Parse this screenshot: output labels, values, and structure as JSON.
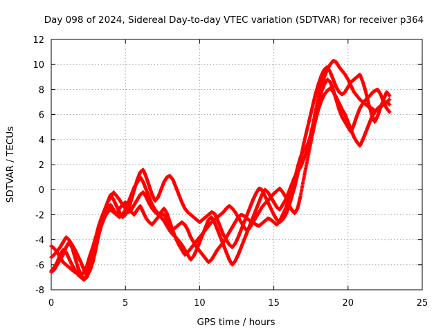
{
  "chart_data": {
    "type": "scatter",
    "title": "Day 098 of 2024, Sidereal Day-to-day VTEC variation (SDTVAR) for receiver p364",
    "xlabel": "GPS time / hours",
    "ylabel": "SDTVAR / TECUs",
    "xlim": [
      0,
      25
    ],
    "ylim": [
      -8,
      12
    ],
    "xticks": [
      0,
      5,
      10,
      15,
      20,
      25
    ],
    "yticks": [
      -8,
      -6,
      -4,
      -2,
      0,
      2,
      4,
      6,
      8,
      10,
      12
    ],
    "grid": true,
    "marker": "plus",
    "color": "#ff0000",
    "series": [
      {
        "x": [
          0.0,
          0.2,
          0.4,
          0.6,
          0.8,
          1.0,
          1.2,
          1.4,
          1.6,
          1.8,
          2.0,
          2.2,
          2.4,
          2.6,
          2.8,
          3.0,
          3.2,
          3.4,
          3.6,
          3.8,
          4.0,
          4.2,
          4.4,
          4.6,
          4.8,
          5.0,
          5.2,
          5.4,
          5.6,
          5.8,
          6.0,
          6.2,
          6.4,
          6.6,
          6.8,
          7.0,
          7.2,
          7.4,
          7.6,
          7.8,
          8.0,
          8.2,
          8.4,
          8.6,
          8.8,
          9.0,
          9.2,
          9.4,
          9.6,
          9.8,
          10.0,
          10.2,
          10.4,
          10.6,
          10.8,
          11.0,
          11.2,
          11.4,
          11.6,
          11.8,
          12.0,
          12.2,
          12.4,
          12.6,
          12.8,
          13.0,
          13.2,
          13.4,
          13.6,
          13.8,
          14.0,
          14.2,
          14.4,
          14.6,
          14.8,
          15.0,
          15.2,
          15.4,
          15.6,
          15.8,
          16.0,
          16.2,
          16.4,
          16.6,
          16.8,
          17.0,
          17.2,
          17.4,
          17.6,
          17.8,
          18.0,
          18.2,
          18.4,
          18.6,
          18.8,
          19.0,
          19.2,
          19.4,
          19.6,
          19.8,
          20.0,
          20.2,
          20.4,
          20.6,
          20.8,
          21.0,
          21.2,
          21.4,
          21.6,
          21.8,
          22.0,
          22.2,
          22.4,
          22.6,
          22.8
        ],
        "y": [
          -6.5,
          -6.2,
          -5.8,
          -5.2,
          -4.8,
          -5.0,
          -5.5,
          -6.0,
          -6.4,
          -6.8,
          -7.0,
          -7.2,
          -6.8,
          -6.0,
          -5.2,
          -4.2,
          -3.2,
          -2.5,
          -2.0,
          -1.6,
          -1.2,
          -1.6,
          -2.0,
          -1.5,
          -1.2,
          -1.0,
          -1.3,
          -1.8,
          -2.0,
          -1.6,
          -1.3,
          -1.8,
          -2.3,
          -2.6,
          -2.8,
          -2.5,
          -2.2,
          -1.9,
          -2.0,
          -2.4,
          -2.9,
          -3.2,
          -3.0,
          -2.8,
          -2.6,
          -2.8,
          -3.2,
          -3.8,
          -4.2,
          -4.6,
          -4.9,
          -5.2,
          -5.5,
          -5.8,
          -5.6,
          -5.2,
          -4.8,
          -4.5,
          -4.2,
          -3.8,
          -3.4,
          -3.0,
          -2.6,
          -2.2,
          -2.0,
          -2.1,
          -2.3,
          -2.5,
          -2.6,
          -2.8,
          -2.9,
          -2.7,
          -2.5,
          -2.3,
          -2.4,
          -2.6,
          -2.8,
          -2.5,
          -2.0,
          -1.5,
          -0.8,
          0.0,
          0.8,
          1.8,
          2.6,
          3.2,
          3.4,
          4.0,
          5.0,
          6.2,
          7.4,
          8.3,
          9.0,
          9.6,
          10.0,
          10.3,
          10.2,
          9.8,
          9.5,
          9.2,
          8.8,
          8.3,
          7.8,
          7.5,
          7.2,
          7.0,
          6.8,
          6.6,
          6.5,
          6.3,
          6.4,
          6.6,
          6.8,
          7.0,
          7.2
        ]
      },
      {
        "x": [
          0.0,
          0.2,
          0.4,
          0.6,
          0.8,
          1.0,
          1.2,
          1.4,
          1.6,
          1.8,
          2.0,
          2.2,
          2.4,
          2.6,
          2.8,
          3.0,
          3.2,
          3.4,
          3.6,
          3.8,
          4.0,
          4.2,
          4.4,
          4.6,
          4.8,
          5.0,
          5.2,
          5.4,
          5.6,
          5.8,
          6.0,
          6.2,
          6.4,
          6.6,
          6.8,
          7.0,
          7.2,
          7.4,
          7.6,
          7.8,
          8.0,
          8.2,
          8.4,
          8.6,
          8.8,
          9.0,
          9.2,
          9.4,
          9.6,
          9.8,
          10.0,
          10.2,
          10.4,
          10.6,
          10.8,
          11.0,
          11.2,
          11.4,
          11.6,
          11.8,
          12.0,
          12.2,
          12.4,
          12.6,
          12.8,
          13.0,
          13.2,
          13.4,
          13.6,
          13.8,
          14.0,
          14.2,
          14.4,
          14.6,
          14.8,
          15.0,
          15.2,
          15.4,
          15.6,
          15.8,
          16.0,
          16.2,
          16.4,
          16.6,
          16.8,
          17.0,
          17.2,
          17.4,
          17.6,
          17.8,
          18.0,
          18.2,
          18.4,
          18.6,
          18.8,
          19.0,
          19.2,
          19.4,
          19.6,
          19.8,
          20.0,
          20.2,
          20.4,
          20.6,
          20.8,
          21.0,
          21.2,
          21.4,
          21.6,
          21.8,
          22.0,
          22.2,
          22.4,
          22.6,
          22.8
        ],
        "y": [
          -4.5,
          -4.7,
          -5.0,
          -5.4,
          -5.8,
          -6.0,
          -6.2,
          -6.4,
          -6.6,
          -6.5,
          -6.9,
          -6.6,
          -6.1,
          -5.3,
          -4.6,
          -3.8,
          -2.9,
          -2.2,
          -1.6,
          -1.0,
          -0.6,
          -0.2,
          -0.5,
          -0.8,
          -1.2,
          -1.5,
          -1.8,
          -1.6,
          -1.2,
          -0.8,
          -0.4,
          -0.2,
          -0.6,
          -1.1,
          -1.5,
          -1.8,
          -2.0,
          -1.8,
          -1.5,
          -1.9,
          -2.6,
          -3.3,
          -3.9,
          -4.4,
          -4.8,
          -5.2,
          -5.0,
          -4.7,
          -4.4,
          -4.1,
          -3.8,
          -3.5,
          -3.2,
          -2.9,
          -2.6,
          -2.4,
          -2.2,
          -2.0,
          -1.8,
          -1.5,
          -1.3,
          -1.5,
          -1.8,
          -2.2,
          -2.6,
          -3.0,
          -3.3,
          -3.0,
          -2.6,
          -2.2,
          -1.8,
          -1.4,
          -1.1,
          -0.9,
          -0.6,
          -0.3,
          -0.1,
          0.1,
          -0.2,
          -0.6,
          -1.2,
          -1.6,
          -1.9,
          -1.5,
          -0.5,
          0.8,
          2.0,
          3.2,
          4.4,
          5.5,
          6.4,
          7.1,
          7.6,
          7.9,
          8.1,
          7.8,
          7.4,
          6.9,
          6.4,
          6.0,
          5.4,
          4.8,
          4.2,
          3.8,
          3.5,
          4.0,
          4.6,
          5.2,
          5.8,
          6.2,
          6.5,
          6.7,
          6.9,
          7.0,
          6.8
        ]
      },
      {
        "x": [
          0.0,
          0.2,
          0.4,
          0.6,
          0.8,
          1.0,
          1.2,
          1.4,
          1.6,
          1.8,
          2.0,
          2.2,
          2.4,
          2.6,
          2.8,
          3.0,
          3.2,
          3.4,
          3.6,
          3.8,
          4.0,
          4.2,
          4.4,
          4.6,
          4.8,
          5.0,
          5.2,
          5.4,
          5.6,
          5.8,
          6.0,
          6.2,
          6.4,
          6.6,
          6.8,
          7.0,
          7.2,
          7.4,
          7.6,
          7.8,
          8.0,
          8.2,
          8.4,
          8.6,
          8.8,
          9.0,
          9.2,
          9.4,
          9.6,
          9.8,
          10.0,
          10.2,
          10.4,
          10.6,
          10.8,
          11.0,
          11.2,
          11.4,
          11.6,
          11.8,
          12.0,
          12.2,
          12.4,
          12.6,
          12.8,
          13.0,
          13.2,
          13.4,
          13.6,
          13.8,
          14.0,
          14.2,
          14.4,
          14.6,
          14.8,
          15.0,
          15.2,
          15.4,
          15.6,
          15.8,
          16.0,
          16.2,
          16.4,
          16.6,
          16.8,
          17.0,
          17.2,
          17.4,
          17.6,
          17.8,
          18.0,
          18.2,
          18.4,
          18.6,
          18.8,
          19.0,
          19.2,
          19.4,
          19.6,
          19.8,
          20.0,
          20.2,
          20.4,
          20.6,
          20.8,
          21.0,
          21.2,
          21.4,
          21.6,
          21.8,
          22.0,
          22.2,
          22.4,
          22.6,
          22.8
        ],
        "y": [
          -5.4,
          -5.2,
          -4.9,
          -4.6,
          -4.2,
          -3.8,
          -4.0,
          -4.4,
          -4.8,
          -5.3,
          -5.8,
          -6.4,
          -6.8,
          -6.5,
          -5.8,
          -4.8,
          -3.6,
          -2.6,
          -1.8,
          -1.0,
          -0.4,
          -0.8,
          -1.3,
          -1.8,
          -2.2,
          -2.0,
          -1.6,
          -0.8,
          0.0,
          0.8,
          1.4,
          1.6,
          1.0,
          0.3,
          -0.4,
          -0.9,
          -0.6,
          0.0,
          0.6,
          1.0,
          1.1,
          0.8,
          0.2,
          -0.4,
          -1.0,
          -1.5,
          -1.8,
          -2.0,
          -2.2,
          -2.4,
          -2.6,
          -2.4,
          -2.2,
          -2.0,
          -1.8,
          -1.9,
          -2.4,
          -3.0,
          -3.6,
          -4.0,
          -4.4,
          -4.6,
          -4.3,
          -3.8,
          -3.2,
          -2.6,
          -2.0,
          -1.4,
          -0.8,
          -0.3,
          0.1,
          0.0,
          -0.5,
          -1.0,
          -1.5,
          -2.0,
          -2.4,
          -2.6,
          -2.4,
          -2.0,
          -1.4,
          -0.6,
          0.2,
          1.2,
          2.4,
          3.6,
          4.6,
          5.6,
          6.6,
          7.6,
          8.4,
          9.1,
          9.6,
          9.8,
          9.4,
          8.8,
          8.2,
          7.8,
          7.6,
          7.8,
          8.2,
          8.6,
          8.8,
          9.0,
          9.2,
          8.6,
          7.8,
          6.8,
          6.0,
          5.4,
          5.9,
          6.6,
          7.2,
          7.8,
          7.5
        ]
      },
      {
        "x": [
          0.0,
          0.2,
          0.4,
          0.6,
          0.8,
          1.0,
          1.2,
          1.4,
          1.6,
          1.8,
          2.0,
          2.2,
          2.4,
          2.6,
          2.8,
          3.0,
          3.2,
          3.4,
          3.6,
          3.8,
          4.0,
          4.2,
          4.4,
          4.6,
          4.8,
          5.0,
          5.2,
          5.4,
          5.6,
          5.8,
          6.0,
          6.2,
          6.4,
          6.6,
          6.8,
          7.0,
          7.2,
          7.4,
          7.6,
          7.8,
          8.0,
          8.2,
          8.4,
          8.6,
          8.8,
          9.0,
          9.2,
          9.4,
          9.6,
          9.8,
          10.0,
          10.2,
          10.4,
          10.6,
          10.8,
          11.0,
          11.2,
          11.4,
          11.6,
          11.8,
          12.0,
          12.2,
          12.4,
          12.6,
          12.8,
          13.0,
          13.2,
          13.4,
          13.6,
          13.8,
          14.0,
          14.2,
          14.4,
          14.6,
          14.8,
          15.0,
          15.2,
          15.4,
          15.6,
          15.8,
          16.0,
          16.2,
          16.4,
          16.6,
          16.8,
          17.0,
          17.2,
          17.4,
          17.6,
          17.8,
          18.0,
          18.2,
          18.4,
          18.6,
          18.8,
          19.0,
          19.2,
          19.4,
          19.6,
          19.8,
          20.0,
          20.2,
          20.4,
          20.6,
          20.8,
          21.0,
          21.2,
          21.4,
          21.6,
          21.8,
          22.0,
          22.2,
          22.4,
          22.6,
          22.8
        ],
        "y": [
          -6.6,
          -6.4,
          -6.0,
          -5.6,
          -5.2,
          -4.6,
          -4.2,
          -4.6,
          -5.4,
          -6.2,
          -6.8,
          -7.2,
          -7.0,
          -6.4,
          -5.6,
          -4.6,
          -3.6,
          -2.8,
          -2.2,
          -1.8,
          -1.6,
          -1.8,
          -2.0,
          -2.2,
          -2.0,
          -1.6,
          -1.0,
          -0.4,
          0.2,
          0.6,
          1.0,
          0.6,
          0.0,
          -0.6,
          -1.2,
          -1.6,
          -1.9,
          -2.2,
          -2.5,
          -2.9,
          -3.3,
          -3.6,
          -3.8,
          -4.1,
          -4.4,
          -4.8,
          -5.2,
          -5.6,
          -5.3,
          -4.8,
          -4.2,
          -3.6,
          -3.0,
          -2.4,
          -2.2,
          -2.6,
          -3.2,
          -3.8,
          -4.4,
          -5.0,
          -5.6,
          -6.0,
          -5.7,
          -5.2,
          -4.6,
          -4.0,
          -3.4,
          -2.8,
          -2.2,
          -1.6,
          -1.0,
          -0.4,
          0.0,
          -0.2,
          -0.6,
          -1.0,
          -1.4,
          -1.6,
          -1.2,
          -0.8,
          -0.2,
          0.4,
          1.0,
          1.4,
          1.8,
          2.4,
          3.0,
          3.8,
          4.8,
          6.0,
          7.0,
          7.8,
          8.4,
          8.8,
          8.6,
          8.0,
          7.2,
          6.4,
          5.8,
          5.4,
          5.0,
          4.6,
          5.2,
          5.9,
          6.5,
          6.9,
          7.2,
          7.4,
          7.7,
          7.9,
          8.0,
          7.6,
          7.0,
          6.5,
          6.2
        ]
      }
    ]
  }
}
